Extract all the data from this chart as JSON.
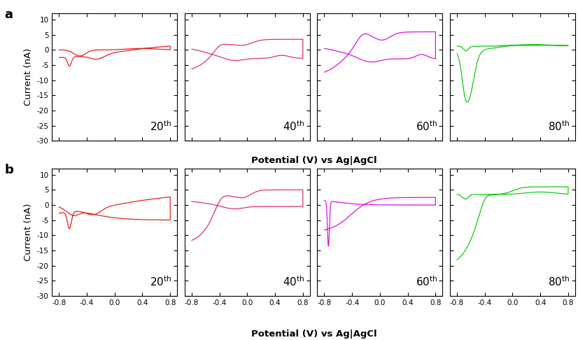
{
  "rows": 2,
  "cols": 4,
  "row_labels": [
    "a",
    "b"
  ],
  "cycle_labels": [
    "20th",
    "40th",
    "60th",
    "80th"
  ],
  "xlim": [
    -0.9,
    0.9
  ],
  "ylim": [
    -30,
    12
  ],
  "yticks": [
    10,
    5,
    0,
    -5,
    -10,
    -15,
    -20,
    -25,
    -30
  ],
  "xticks": [
    -0.8,
    -0.4,
    0.0,
    0.4,
    0.8
  ],
  "xtick_labels": [
    "-0.8",
    "-0.4",
    "0.0",
    "0.4",
    "0.8"
  ],
  "xlabel": "Potential (V) vs Ag|AgCl",
  "ylabel": "Current (nA)",
  "colors": [
    [
      "#e82020",
      "#e03070",
      "#dd10dd",
      "#10cc10"
    ],
    [
      "#e82020",
      "#e03070",
      "#dd10dd",
      "#10cc10"
    ]
  ],
  "background_color": "#ffffff"
}
